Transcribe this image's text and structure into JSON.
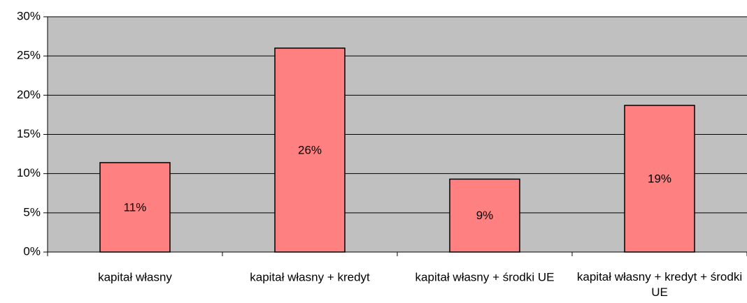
{
  "chart_data": {
    "type": "bar",
    "categories": [
      "kapitał własny",
      "kapitał własny + kredyt",
      "kapitał własny + środki UE",
      "kapitał własny + kredyt + środki UE"
    ],
    "values": [
      11.4,
      26,
      9.3,
      18.7
    ],
    "value_labels": [
      "11%",
      "26%",
      "9%",
      "19%"
    ],
    "color": "#ff8080",
    "ylim": [
      0,
      30
    ],
    "yticks": [
      {
        "value": 0,
        "label": "0%"
      },
      {
        "value": 5,
        "label": "5%"
      },
      {
        "value": 10,
        "label": "10%"
      },
      {
        "value": 15,
        "label": "15%"
      },
      {
        "value": 20,
        "label": "20%"
      },
      {
        "value": 25,
        "label": "25%"
      },
      {
        "value": 30,
        "label": "30%"
      }
    ],
    "grid": true
  }
}
